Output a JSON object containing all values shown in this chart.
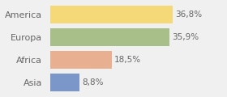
{
  "categories": [
    "America",
    "Europa",
    "Africa",
    "Asia"
  ],
  "values": [
    36.8,
    35.9,
    18.5,
    8.8
  ],
  "labels": [
    "36,8%",
    "35,9%",
    "18,5%",
    "8,8%"
  ],
  "bar_colors": [
    "#f5d878",
    "#a8bf8a",
    "#e8b090",
    "#7b96c8"
  ],
  "background_color": "#f0f0f0",
  "xlim": [
    0,
    45
  ],
  "bar_height": 0.78,
  "label_fontsize": 7.5,
  "category_fontsize": 8.0,
  "text_color": "#666666"
}
